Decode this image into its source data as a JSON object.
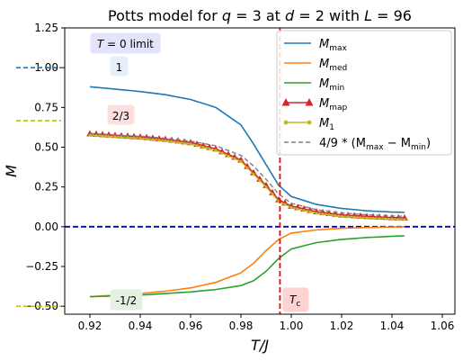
{
  "chart_data": {
    "type": "line",
    "title": "Potts model for q = 3 at d = 2 with L = 96",
    "xlabel": "T/J",
    "ylabel": "M",
    "xlim": [
      0.91,
      1.065
    ],
    "ylim": [
      -0.55,
      1.25
    ],
    "xticks": [
      0.92,
      0.94,
      0.96,
      0.98,
      1.0,
      1.02,
      1.04,
      1.06
    ],
    "xtick_labels": [
      "0.92",
      "0.94",
      "0.96",
      "0.98",
      "1.00",
      "1.02",
      "1.04",
      "1.06"
    ],
    "yticks": [
      -0.5,
      -0.25,
      0.0,
      0.25,
      0.5,
      0.75,
      1.0,
      1.25
    ],
    "ytick_labels": [
      "−0.50",
      "−0.25",
      "0.00",
      "0.25",
      "0.50",
      "0.75",
      "1.00",
      "1.25"
    ],
    "grid": false,
    "legend_position": "top-right",
    "x": [
      0.92,
      0.93,
      0.94,
      0.95,
      0.96,
      0.97,
      0.98,
      0.985,
      0.99,
      0.995,
      1.0,
      1.01,
      1.02,
      1.03,
      1.04,
      1.046
    ],
    "series": [
      {
        "name": "M_max",
        "color": "#1f77b4",
        "style": "line",
        "values": [
          0.88,
          0.865,
          0.85,
          0.83,
          0.8,
          0.75,
          0.64,
          0.52,
          0.39,
          0.26,
          0.19,
          0.14,
          0.115,
          0.1,
          0.092,
          0.09
        ]
      },
      {
        "name": "M_med",
        "color": "#ff7f0e",
        "style": "line",
        "values": [
          -0.44,
          -0.43,
          -0.42,
          -0.405,
          -0.385,
          -0.35,
          -0.29,
          -0.23,
          -0.15,
          -0.08,
          -0.04,
          -0.02,
          -0.01,
          -0.005,
          -0.002,
          0.0
        ]
      },
      {
        "name": "M_min",
        "color": "#2ca02c",
        "style": "line",
        "values": [
          -0.44,
          -0.435,
          -0.43,
          -0.42,
          -0.41,
          -0.395,
          -0.37,
          -0.34,
          -0.28,
          -0.2,
          -0.14,
          -0.1,
          -0.08,
          -0.068,
          -0.06,
          -0.057
        ]
      },
      {
        "name": "M_map",
        "color": "#d62728",
        "style": "triangle",
        "values": [
          0.585,
          0.575,
          0.565,
          0.55,
          0.53,
          0.49,
          0.42,
          0.34,
          0.26,
          0.17,
          0.13,
          0.095,
          0.075,
          0.065,
          0.058,
          0.055
        ]
      },
      {
        "name": "M_1",
        "color": "#bcbd22",
        "style": "dot",
        "values": [
          0.575,
          0.565,
          0.555,
          0.54,
          0.52,
          0.48,
          0.41,
          0.33,
          0.25,
          0.16,
          0.12,
          0.085,
          0.065,
          0.055,
          0.048,
          0.045
        ]
      },
      {
        "name": "4/9*(M_max - M_min)",
        "color": "#7f7f7f",
        "style": "dashed",
        "values": [
          0.586,
          0.578,
          0.569,
          0.556,
          0.538,
          0.509,
          0.449,
          0.382,
          0.298,
          0.205,
          0.147,
          0.107,
          0.087,
          0.075,
          0.068,
          0.065
        ]
      }
    ],
    "legend": [
      {
        "label": "M",
        "sub": "max"
      },
      {
        "label": "M",
        "sub": "med"
      },
      {
        "label": "M",
        "sub": "min"
      },
      {
        "label": "M",
        "sub": "map"
      },
      {
        "label": "M",
        "sub": "1"
      },
      {
        "label": "4/9 * (M",
        "sub": "max",
        "rest": " − M",
        "sub2": "min",
        "end": ")"
      }
    ],
    "reference_lines": {
      "zero_line": {
        "y": 0.0,
        "color": "#0000cd"
      },
      "tc_line": {
        "x": 0.9955,
        "color": "#ff0000"
      }
    },
    "limit_markers": [
      {
        "y": 1.0,
        "color": "#1f77b4"
      },
      {
        "y": 0.6667,
        "color": "#bcbd22"
      },
      {
        "y": -0.5,
        "color": "#bcbd22"
      }
    ],
    "annotations": {
      "t0_limit": {
        "text": "T = 0 limit",
        "bg": "#e3e3fb"
      },
      "one": {
        "text": "1",
        "bg": "#e6f0fa"
      },
      "two_thirds": {
        "text": "2/3",
        "bg": "#fce0df"
      },
      "minus_half": {
        "text": "-1/2",
        "bg": "#e2f1e0"
      },
      "tc": {
        "text": "T",
        "sub": "c",
        "bg": "#fcd3d1"
      }
    }
  }
}
